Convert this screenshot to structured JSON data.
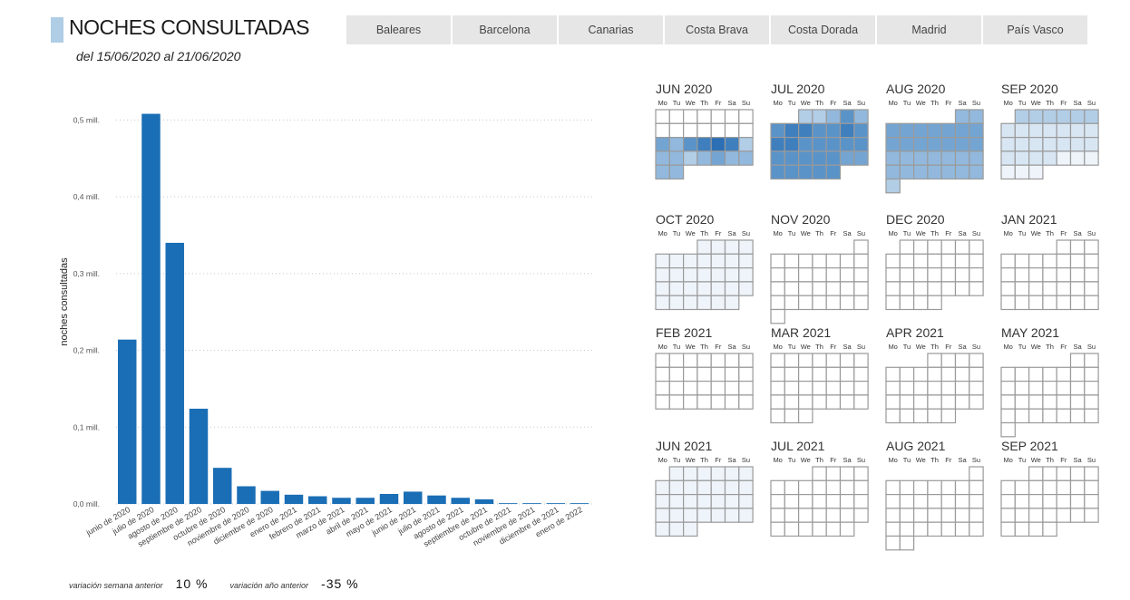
{
  "header": {
    "title": "NOCHES CONSULTADAS",
    "subtitle": "del 15/06/2020 al 21/06/2020"
  },
  "tabs": [
    "Baleares",
    "Barcelona",
    "Canarias",
    "Costa Brava",
    "Costa Dorada",
    "Madrid",
    "País Vasco"
  ],
  "colors": {
    "bar": "#1a6eb5",
    "title_accent": "#b0cde6",
    "cell_border": "#9a9a9a"
  },
  "chart_data": {
    "type": "bar",
    "ylabel": "noches consultadas",
    "xlabel": "",
    "ylim": [
      0,
      0.55
    ],
    "yticks": [
      {
        "v": 0.5,
        "label": "0,5 mill."
      },
      {
        "v": 0.4,
        "label": "0,4 mill."
      },
      {
        "v": 0.3,
        "label": "0,3 mill."
      },
      {
        "v": 0.2,
        "label": "0,2 mill."
      },
      {
        "v": 0.1,
        "label": "0,1 mill."
      },
      {
        "v": 0.0,
        "label": "0,0 mill."
      }
    ],
    "categories": [
      "junio de 2020",
      "julio de 2020",
      "agosto de 2020",
      "septiembre de 2020",
      "octubre de 2020",
      "noviembre de 2020",
      "diciembre de 2020",
      "enero de 2021",
      "febrero de 2021",
      "marzo de 2021",
      "abril de 2021",
      "mayo de 2021",
      "junio de 2021",
      "julio de 2021",
      "agosto de 2021",
      "septiembre de 2021",
      "octubre de 2021",
      "noviembre de 2021",
      "diciembre de 2021",
      "enero de 2022"
    ],
    "values": [
      0.214,
      0.508,
      0.34,
      0.124,
      0.047,
      0.023,
      0.017,
      0.012,
      0.01,
      0.008,
      0.008,
      0.013,
      0.016,
      0.011,
      0.008,
      0.006,
      0.001,
      0.001,
      0.001,
      0.001
    ],
    "grid": true
  },
  "calendar": {
    "day_headers": [
      "Mo",
      "Tu",
      "We",
      "Th",
      "Fr",
      "Sa",
      "Su"
    ],
    "palette": [
      "#ffffff",
      "#eef4fa",
      "#d8e6f3",
      "#b2cde6",
      "#92b9dd",
      "#74a5d2",
      "#5a93c8",
      "#3f7fbe",
      "#2c6fb5"
    ],
    "months": [
      {
        "label": "JUN 2020",
        "start": 0,
        "days": 30,
        "levels": [
          0,
          0,
          0,
          0,
          0,
          0,
          0,
          0,
          0,
          0,
          0,
          0,
          0,
          0,
          5,
          4,
          6,
          7,
          8,
          7,
          3,
          4,
          4,
          3,
          4,
          5,
          4,
          4,
          4,
          4
        ]
      },
      {
        "label": "JUL 2020",
        "start": 2,
        "days": 31,
        "levels": [
          3,
          3,
          4,
          6,
          4,
          6,
          7,
          7,
          6,
          6,
          7,
          6,
          7,
          7,
          6,
          6,
          6,
          6,
          6,
          6,
          6,
          6,
          6,
          6,
          5,
          5,
          6,
          6,
          6,
          6,
          6
        ]
      },
      {
        "label": "AUG 2020",
        "start": 5,
        "days": 31,
        "levels": [
          4,
          4,
          5,
          5,
          5,
          5,
          5,
          5,
          5,
          5,
          5,
          5,
          5,
          5,
          5,
          5,
          4,
          4,
          4,
          4,
          4,
          4,
          4,
          4,
          4,
          4,
          4,
          4,
          4,
          4,
          3
        ]
      },
      {
        "label": "SEP 2020",
        "start": 1,
        "days": 30,
        "levels": [
          3,
          3,
          3,
          3,
          3,
          3,
          2,
          2,
          2,
          2,
          2,
          2,
          2,
          2,
          2,
          2,
          2,
          2,
          2,
          2,
          2,
          2,
          2,
          2,
          1,
          1,
          1,
          1,
          1,
          1
        ]
      },
      {
        "label": "OCT 2020",
        "start": 3,
        "days": 31,
        "levels": [
          1,
          1,
          1,
          1,
          1,
          1,
          1,
          1,
          1,
          1,
          1,
          1,
          1,
          1,
          1,
          1,
          1,
          1,
          1,
          1,
          1,
          1,
          1,
          1,
          1,
          1,
          1,
          1,
          1,
          1,
          1
        ]
      },
      {
        "label": "NOV 2020",
        "start": 6,
        "days": 30,
        "levels": []
      },
      {
        "label": "DEC 2020",
        "start": 1,
        "days": 31,
        "levels": []
      },
      {
        "label": "JAN 2021",
        "start": 4,
        "days": 31,
        "levels": []
      },
      {
        "label": "FEB 2021",
        "start": 0,
        "days": 28,
        "levels": []
      },
      {
        "label": "MAR 2021",
        "start": 0,
        "days": 31,
        "levels": []
      },
      {
        "label": "APR 2021",
        "start": 3,
        "days": 30,
        "levels": []
      },
      {
        "label": "MAY 2021",
        "start": 5,
        "days": 31,
        "levels": []
      },
      {
        "label": "JUN 2021",
        "start": 1,
        "days": 30,
        "levels": [
          1,
          1,
          1,
          1,
          1,
          1,
          1,
          1,
          1,
          1,
          1,
          1,
          1,
          1,
          1,
          1,
          1,
          1,
          1,
          1,
          1,
          1,
          1,
          1,
          1,
          1,
          1,
          1,
          1,
          1
        ]
      },
      {
        "label": "JUL 2021",
        "start": 3,
        "days": 31,
        "levels": []
      },
      {
        "label": "AUG 2021",
        "start": 6,
        "days": 31,
        "levels": []
      },
      {
        "label": "SEP 2021",
        "start": 2,
        "days": 30,
        "levels": []
      }
    ]
  },
  "footer": {
    "week_label": "variación semana anterior",
    "week_value": "10 %",
    "year_label": "variación año anterior",
    "year_value": "-35 %"
  }
}
